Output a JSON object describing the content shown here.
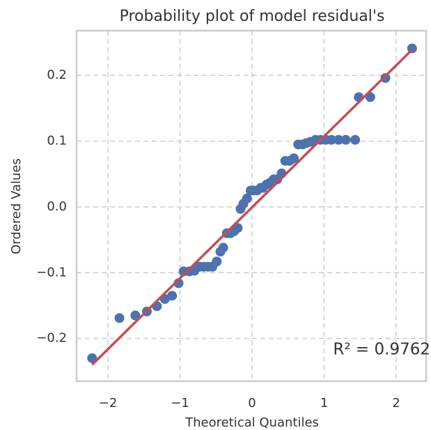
{
  "chart_data": {
    "type": "probplot",
    "title": "Probability plot of model residual's",
    "xlabel": "Theoretical Quantiles",
    "ylabel": "Ordered Values",
    "annotation": "R² = 0.9762",
    "x": [
      -2.22,
      -1.84,
      -1.62,
      -1.46,
      -1.32,
      -1.21,
      -1.11,
      -1.02,
      -0.95,
      -0.87,
      -0.8,
      -0.73,
      -0.67,
      -0.61,
      -0.55,
      -0.49,
      -0.44,
      -0.4,
      -0.35,
      -0.3,
      -0.25,
      -0.2,
      -0.16,
      -0.12,
      -0.07,
      -0.02,
      0.02,
      0.07,
      0.12,
      0.15,
      0.2,
      0.25,
      0.3,
      0.35,
      0.41,
      0.46,
      0.52,
      0.58,
      0.64,
      0.7,
      0.75,
      0.81,
      0.88,
      0.95,
      1.02,
      1.1,
      1.2,
      1.3,
      1.43,
      1.48,
      1.64,
      1.85,
      2.22
    ],
    "y": [
      -0.23,
      -0.169,
      -0.165,
      -0.159,
      -0.151,
      -0.14,
      -0.135,
      -0.116,
      -0.098,
      -0.098,
      -0.097,
      -0.091,
      -0.091,
      -0.091,
      -0.091,
      -0.083,
      -0.068,
      -0.062,
      -0.04,
      -0.04,
      -0.037,
      -0.032,
      -0.003,
      0.005,
      0.013,
      0.025,
      0.025,
      0.025,
      0.029,
      0.029,
      0.034,
      0.037,
      0.042,
      0.042,
      0.051,
      0.07,
      0.07,
      0.074,
      0.095,
      0.095,
      0.097,
      0.099,
      0.102,
      0.102,
      0.102,
      0.102,
      0.102,
      0.102,
      0.102,
      0.167,
      0.167,
      0.196,
      0.241
    ],
    "color": "#4c72b0",
    "fit": {
      "x": [
        -2.22,
        2.22
      ],
      "y": [
        -0.24,
        0.239
      ],
      "color": "#c44e52"
    },
    "xlim": [
      -2.435,
      2.415
    ],
    "ylim": [
      -0.265,
      0.268
    ],
    "xticks": [
      {
        "value": -2,
        "label": "−2"
      },
      {
        "value": -1,
        "label": "−1"
      },
      0,
      1,
      2
    ],
    "yticks": [
      {
        "value": -0.2,
        "label": "−0.2"
      },
      {
        "value": -0.1,
        "label": "−0.1"
      },
      {
        "value": 0,
        "label": "0.0"
      },
      0.1,
      0.2
    ],
    "grid": true
  }
}
